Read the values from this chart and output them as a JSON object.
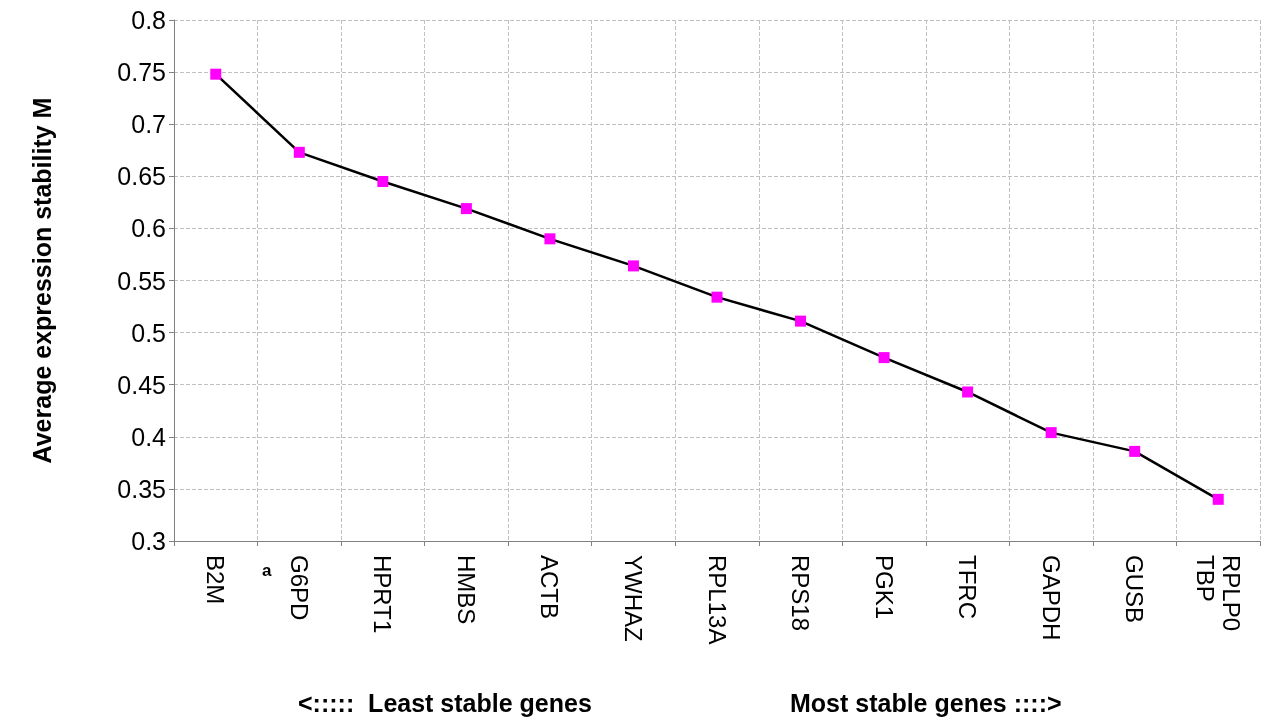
{
  "chart_data": {
    "type": "line",
    "ylabel": "Average expression stability M",
    "categories": [
      "B2M",
      "G6PD",
      "HPRT1",
      "HMBS",
      "ACTB",
      "YWHAZ",
      "RPL13A",
      "RPS18",
      "PGK1",
      "TFRC",
      "GAPDH",
      "GUSB",
      "RPLP0\nTBP"
    ],
    "series": [
      {
        "color": "#000000",
        "colors": [
          "#ff00ff",
          "#ff00ff",
          "#ff00ff",
          "#ff00ff",
          "#ff00ff",
          "#ff00ff",
          "#ff00ff",
          "#ff00ff",
          "#ff00ff",
          "#ff00ff",
          "#ff00ff",
          "#ff00ff",
          "#ff00ff"
        ],
        "values": [
          0.748,
          0.673,
          0.645,
          0.619,
          0.59,
          0.564,
          0.534,
          0.511,
          0.476,
          0.443,
          0.404,
          0.386,
          0.34
        ]
      }
    ],
    "ylim": [
      0.3,
      0.8
    ],
    "yticks": [
      0.3,
      0.35,
      0.4,
      0.45,
      0.5,
      0.55,
      0.6,
      0.65,
      0.7,
      0.75,
      0.8
    ],
    "grid": true,
    "marker": "square",
    "line_style": "solid",
    "annotations": [
      "a",
      "<:::::  Least stable genes",
      "Most stable genes ::::>"
    ]
  }
}
